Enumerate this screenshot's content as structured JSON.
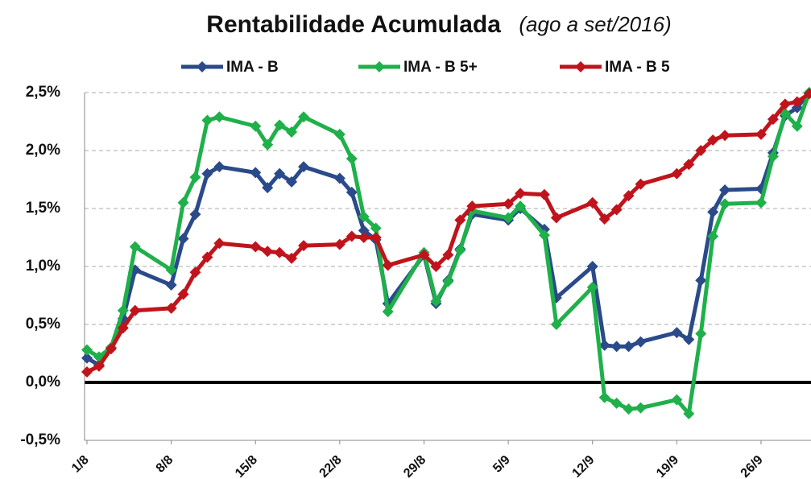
{
  "chart_data": {
    "type": "line",
    "title": "Rentabilidade Acumulada",
    "subtitle": "(ago a set/2016)",
    "x": [
      0,
      1,
      2,
      3,
      4,
      7,
      8,
      9,
      10,
      11,
      14,
      15,
      16,
      17,
      18,
      21,
      22,
      23,
      24,
      25,
      28,
      29,
      30,
      31,
      32,
      35,
      36,
      38,
      39,
      42,
      43,
      44,
      45,
      46,
      49,
      50,
      51,
      52,
      53,
      56,
      57,
      58,
      59,
      60
    ],
    "xlim": [
      -0.2,
      60.15
    ],
    "xticks": [
      {
        "value": 0,
        "label": "1/8"
      },
      {
        "value": 7,
        "label": "8/8"
      },
      {
        "value": 14,
        "label": "15/8"
      },
      {
        "value": 21,
        "label": "22/8"
      },
      {
        "value": 28,
        "label": "29/8"
      },
      {
        "value": 35,
        "label": "5/9"
      },
      {
        "value": 42,
        "label": "12/9"
      },
      {
        "value": 49,
        "label": "19/9"
      },
      {
        "value": 56,
        "label": "26/9"
      }
    ],
    "ylim": [
      -0.5,
      2.5
    ],
    "yticks": [
      {
        "value": -0.5,
        "label": "-0,5%"
      },
      {
        "value": 0,
        "label": "0,0%"
      },
      {
        "value": 0.5,
        "label": "0,5%"
      },
      {
        "value": 1,
        "label": "1,0%"
      },
      {
        "value": 1.5,
        "label": "1,5%"
      },
      {
        "value": 2,
        "label": "2,0%"
      },
      {
        "value": 2.5,
        "label": "2,5%"
      }
    ],
    "grid": true,
    "legend": "top",
    "series": [
      {
        "name": "IMA - B",
        "color": "#2a4a8a",
        "values": [
          0.21,
          0.15,
          0.3,
          0.55,
          0.97,
          0.84,
          1.24,
          1.45,
          1.8,
          1.86,
          1.81,
          1.68,
          1.8,
          1.73,
          1.86,
          1.76,
          1.64,
          1.31,
          1.23,
          0.68,
          1.1,
          0.68,
          0.88,
          1.15,
          1.45,
          1.4,
          1.5,
          1.32,
          0.73,
          1.0,
          0.32,
          0.31,
          0.31,
          0.35,
          0.43,
          0.37,
          0.88,
          1.47,
          1.66,
          1.67,
          1.98,
          2.3,
          2.37,
          2.5
        ]
      },
      {
        "name": "IMA - B 5+",
        "color": "#1fb04a",
        "values": [
          0.28,
          0.22,
          0.3,
          0.62,
          1.17,
          0.97,
          1.55,
          1.77,
          2.26,
          2.29,
          2.21,
          2.05,
          2.22,
          2.16,
          2.29,
          2.14,
          1.93,
          1.43,
          1.33,
          0.61,
          1.12,
          0.7,
          0.87,
          1.14,
          1.48,
          1.42,
          1.52,
          1.27,
          0.5,
          0.82,
          -0.13,
          -0.18,
          -0.23,
          -0.22,
          -0.15,
          -0.27,
          0.42,
          1.26,
          1.54,
          1.55,
          1.95,
          2.32,
          2.21,
          2.5
        ]
      },
      {
        "name": "IMA - B 5",
        "color": "#c0141c",
        "values": [
          0.09,
          0.14,
          0.29,
          0.47,
          0.62,
          0.64,
          0.76,
          0.95,
          1.08,
          1.2,
          1.17,
          1.13,
          1.12,
          1.07,
          1.18,
          1.19,
          1.26,
          1.25,
          1.25,
          1.01,
          1.1,
          1.0,
          1.1,
          1.4,
          1.52,
          1.54,
          1.63,
          1.62,
          1.42,
          1.55,
          1.41,
          1.49,
          1.61,
          1.71,
          1.8,
          1.88,
          2.0,
          2.09,
          2.13,
          2.14,
          2.27,
          2.4,
          2.42,
          2.49
        ]
      }
    ]
  }
}
